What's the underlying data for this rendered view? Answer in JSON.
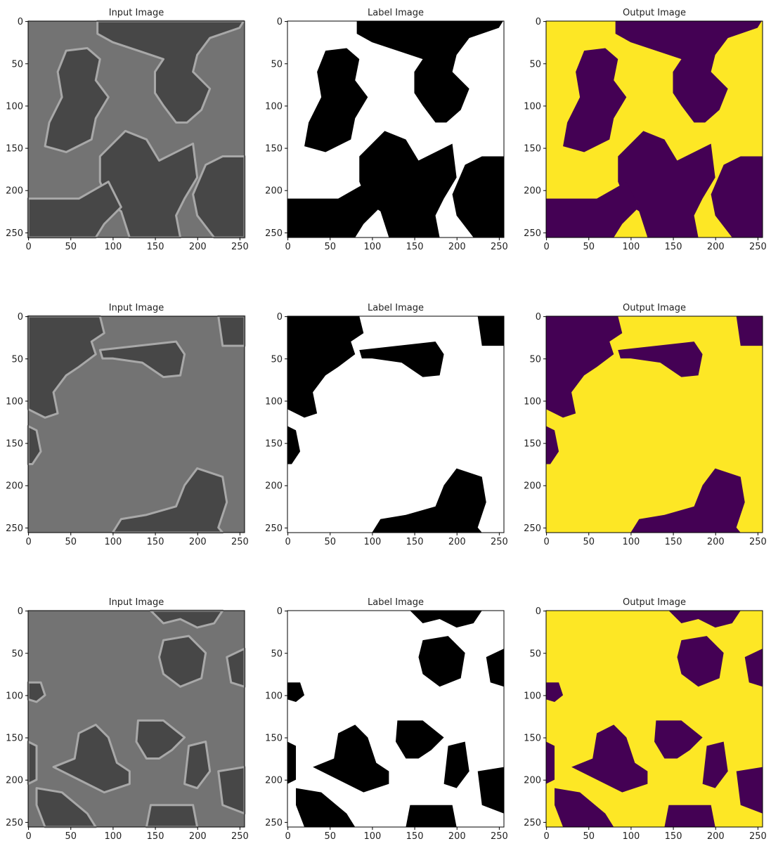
{
  "chart_data": [
    {
      "type": "image",
      "title": "Input Image",
      "xlim": [
        -0.5,
        255.5
      ],
      "ylim": [
        255.5,
        -0.5
      ],
      "xticks": [
        0,
        50,
        100,
        150,
        200,
        250
      ],
      "yticks": [
        0,
        50,
        100,
        150,
        200,
        250
      ]
    },
    {
      "type": "image",
      "title": "Label Image",
      "xlim": [
        -0.5,
        255.5
      ],
      "ylim": [
        255.5,
        -0.5
      ],
      "xticks": [
        0,
        50,
        100,
        150,
        200,
        250
      ],
      "yticks": [
        0,
        50,
        100,
        150,
        200,
        250
      ]
    },
    {
      "type": "image",
      "title": "Output Image",
      "xlim": [
        -0.5,
        255.5
      ],
      "ylim": [
        255.5,
        -0.5
      ],
      "xticks": [
        0,
        50,
        100,
        150,
        200,
        250
      ],
      "yticks": [
        0,
        50,
        100,
        150,
        200,
        250
      ]
    },
    {
      "type": "image",
      "title": "Input Image",
      "xlim": [
        -0.5,
        255.5
      ],
      "ylim": [
        255.5,
        -0.5
      ],
      "xticks": [
        0,
        50,
        100,
        150,
        200,
        250
      ],
      "yticks": [
        0,
        50,
        100,
        150,
        200,
        250
      ]
    },
    {
      "type": "image",
      "title": "Label Image",
      "xlim": [
        -0.5,
        255.5
      ],
      "ylim": [
        255.5,
        -0.5
      ],
      "xticks": [
        0,
        50,
        100,
        150,
        200,
        250
      ],
      "yticks": [
        0,
        50,
        100,
        150,
        200,
        250
      ]
    },
    {
      "type": "image",
      "title": "Output Image",
      "xlim": [
        -0.5,
        255.5
      ],
      "ylim": [
        255.5,
        -0.5
      ],
      "xticks": [
        0,
        50,
        100,
        150,
        200,
        250
      ],
      "yticks": [
        0,
        50,
        100,
        150,
        200,
        250
      ]
    },
    {
      "type": "image",
      "title": "Input Image",
      "xlim": [
        -0.5,
        255.5
      ],
      "ylim": [
        255.5,
        -0.5
      ],
      "xticks": [
        0,
        50,
        100,
        150,
        200,
        250
      ],
      "yticks": [
        0,
        50,
        100,
        150,
        200,
        250
      ]
    },
    {
      "type": "image",
      "title": "Label Image",
      "xlim": [
        -0.5,
        255.5
      ],
      "ylim": [
        255.5,
        -0.5
      ],
      "xticks": [
        0,
        50,
        100,
        150,
        200,
        250
      ],
      "yticks": [
        0,
        50,
        100,
        150,
        200,
        250
      ]
    },
    {
      "type": "image",
      "title": "Output Image",
      "xlim": [
        -0.5,
        255.5
      ],
      "ylim": [
        255.5,
        -0.5
      ],
      "xticks": [
        0,
        50,
        100,
        150,
        200,
        250
      ],
      "yticks": [
        0,
        50,
        100,
        150,
        200,
        250
      ]
    }
  ]
}
